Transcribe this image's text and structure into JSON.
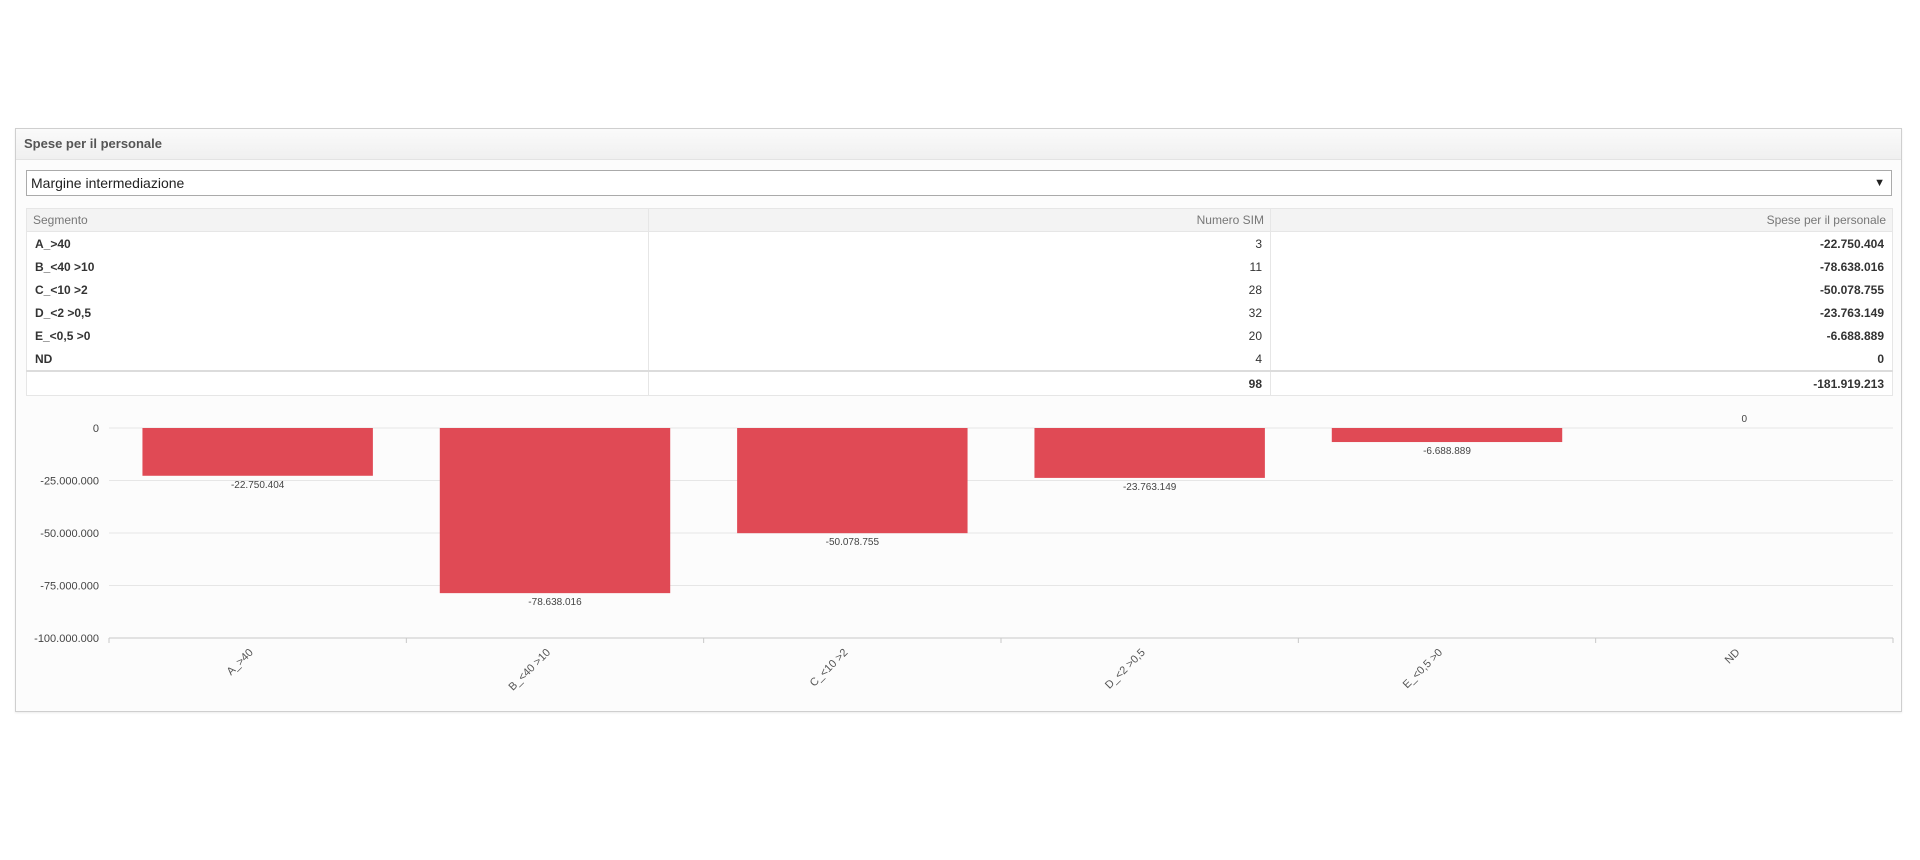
{
  "panel": {
    "title": "Spese per il personale"
  },
  "selector": {
    "value": "Margine intermediazione",
    "arrow_icon": "triangle-down-icon"
  },
  "table": {
    "headers": [
      "Segmento",
      "Numero SIM",
      "Spese per il personale"
    ],
    "rows": [
      {
        "segmento": "A_>40",
        "numero_sim": "3",
        "spese": "-22.750.404"
      },
      {
        "segmento": "B_<40 >10",
        "numero_sim": "11",
        "spese": "-78.638.016"
      },
      {
        "segmento": "C_<10 >2",
        "numero_sim": "28",
        "spese": "-50.078.755"
      },
      {
        "segmento": "D_<2 >0,5",
        "numero_sim": "32",
        "spese": "-23.763.149"
      },
      {
        "segmento": "E_<0,5 >0",
        "numero_sim": "20",
        "spese": "-6.688.889"
      },
      {
        "segmento": "ND",
        "numero_sim": "4",
        "spese": "0"
      }
    ],
    "total": {
      "segmento": "",
      "numero_sim": "98",
      "spese": "-181.919.213"
    }
  },
  "chart_data": {
    "type": "bar",
    "categories": [
      "A_>40",
      "B_<40 >10",
      "C_<10 >2",
      "D_<2 >0,5",
      "E_<0,5 >0",
      "ND"
    ],
    "values": [
      -22750404,
      -78638016,
      -50078755,
      -23763149,
      -6688889,
      0
    ],
    "value_labels": [
      "-22.750.404",
      "-78.638.016",
      "-50.078.755",
      "-23.763.149",
      "-6.688.889",
      "0"
    ],
    "yticks": [
      0,
      -25000000,
      -50000000,
      -75000000,
      -100000000
    ],
    "ytick_labels": [
      "0",
      "-25.000.000",
      "-50.000.000",
      "-75.000.000",
      "-100.000.000"
    ],
    "ylim": [
      -100000000,
      0
    ],
    "title": "",
    "xlabel": "",
    "ylabel": "",
    "grid": true,
    "bar_color": "#e04a55",
    "legend": "none"
  }
}
